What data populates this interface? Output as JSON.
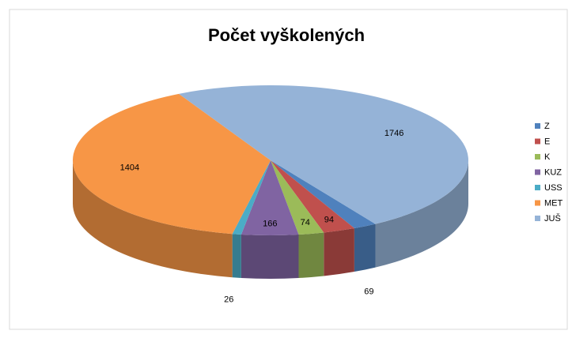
{
  "chart_data": {
    "type": "pie3d",
    "title": "Počet vyškolených",
    "categories": [
      "Z",
      "E",
      "K",
      "KUZ",
      "USS",
      "MET",
      "JUŠ"
    ],
    "values": [
      69,
      94,
      74,
      166,
      26,
      1404,
      1746
    ],
    "colors": [
      "#4f81bd",
      "#c0504d",
      "#9bbb59",
      "#8064a2",
      "#4bacc6",
      "#f79646",
      "#95b3d7"
    ],
    "legend": "right"
  }
}
